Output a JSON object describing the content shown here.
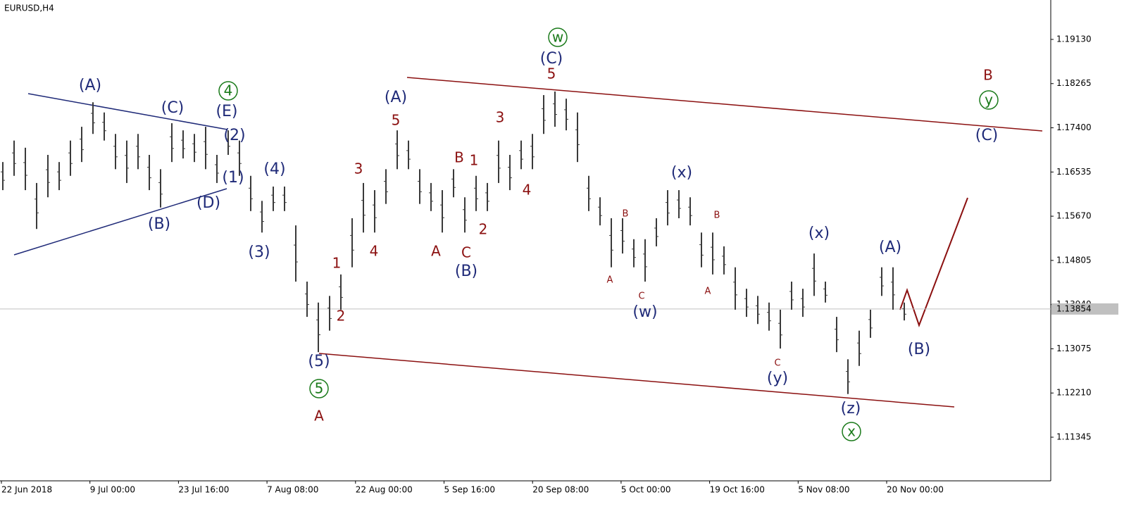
{
  "chart_data": {
    "type": "ohlc-bars",
    "title": "EURUSD,H4",
    "categories": [
      "22 Jun 2018",
      "9 Jul 00:00",
      "23 Jul 16:00",
      "7 Aug 08:00",
      "22 Aug 00:00",
      "5 Sep 16:00",
      "20 Sep 08:00",
      "5 Oct 00:00",
      "19 Oct 16:00",
      "5 Nov 08:00",
      "20 Nov 00:00"
    ],
    "series": [
      {
        "name": "EURUSD",
        "color": "#3a3a3a",
        "high": [
          1.1673,
          1.1715,
          1.1701,
          1.1632,
          1.1687,
          1.1673,
          1.1715,
          1.1742,
          1.179,
          1.177,
          1.1728,
          1.1715,
          1.1728,
          1.1687,
          1.1659,
          1.1749,
          1.1735,
          1.1728,
          1.1742,
          1.1687,
          1.1735,
          1.1715,
          1.1646,
          1.1597,
          1.1625,
          1.1625,
          1.1549,
          1.1439,
          1.1398,
          1.1411,
          1.1453,
          1.1563,
          1.1632,
          1.1618,
          1.1659,
          1.1735,
          1.1715,
          1.1659,
          1.1632,
          1.1618,
          1.1659,
          1.1604,
          1.1646,
          1.1632,
          1.1715,
          1.1687,
          1.1715,
          1.1728,
          1.1804,
          1.1811,
          1.1797,
          1.177,
          1.1646,
          1.1604,
          1.1563,
          1.1563,
          1.1522,
          1.1522,
          1.1563,
          1.1618,
          1.1618,
          1.1604,
          1.1535,
          1.1535,
          1.1508,
          1.1467,
          1.1425,
          1.1411,
          1.1398,
          1.1384,
          1.1439,
          1.1425,
          1.1494,
          1.1439,
          1.137,
          1.1287,
          1.1343,
          1.1384,
          1.1467,
          1.1467,
          1.1398
        ],
        "low": [
          1.1618,
          1.1646,
          1.1618,
          1.1542,
          1.1604,
          1.1618,
          1.1646,
          1.1673,
          1.1728,
          1.1715,
          1.1659,
          1.1632,
          1.1659,
          1.1618,
          1.1584,
          1.1673,
          1.168,
          1.1673,
          1.1659,
          1.1632,
          1.1687,
          1.1646,
          1.1577,
          1.1535,
          1.1577,
          1.1577,
          1.1439,
          1.137,
          1.1301,
          1.1343,
          1.1384,
          1.1467,
          1.1535,
          1.1535,
          1.1591,
          1.1659,
          1.1659,
          1.1591,
          1.1577,
          1.1535,
          1.1604,
          1.1535,
          1.1577,
          1.1577,
          1.1632,
          1.1618,
          1.1659,
          1.1659,
          1.1728,
          1.1742,
          1.1735,
          1.1673,
          1.1577,
          1.1549,
          1.1467,
          1.1494,
          1.1467,
          1.1439,
          1.1508,
          1.1549,
          1.1563,
          1.1549,
          1.1467,
          1.1453,
          1.1453,
          1.1384,
          1.137,
          1.1356,
          1.1343,
          1.1308,
          1.1384,
          1.137,
          1.1411,
          1.1398,
          1.1301,
          1.1219,
          1.1274,
          1.1329,
          1.1411,
          1.1384,
          1.1363
        ]
      }
    ],
    "current_price": {
      "value": 1.13854,
      "label": "1.13854"
    },
    "ylim": [
      1.10491,
      1.19901
    ],
    "yticks": [
      {
        "value": 1.1913,
        "label": "1.19130"
      },
      {
        "value": 1.18265,
        "label": "1.18265"
      },
      {
        "value": 1.174,
        "label": "1.17400"
      },
      {
        "value": 1.16535,
        "label": "1.16535"
      },
      {
        "value": 1.1567,
        "label": "1.15670"
      },
      {
        "value": 1.14805,
        "label": "1.14805"
      },
      {
        "value": 1.1394,
        "label": "1.13940"
      },
      {
        "value": 1.13075,
        "label": "1.13075"
      },
      {
        "value": 1.1221,
        "label": "1.12210"
      },
      {
        "value": 1.11345,
        "label": "1.11345"
      }
    ],
    "annotations": [
      {
        "text": "(A)",
        "color": "#1f2a78"
      },
      {
        "text": "(C)",
        "color": "#1f2a78"
      },
      {
        "text": "(E)",
        "color": "#1f2a78"
      },
      {
        "text": "(B)",
        "color": "#1f2a78"
      },
      {
        "text": "(D)",
        "color": "#1f2a78"
      },
      {
        "text": "(2)",
        "color": "#1f2a78"
      },
      {
        "text": "(1)",
        "color": "#1f2a78"
      },
      {
        "text": "(4)",
        "color": "#1f2a78"
      },
      {
        "text": "(3)",
        "color": "#1f2a78"
      },
      {
        "text": "(5)",
        "color": "#1f2a78"
      },
      {
        "text": "(A)",
        "color": "#1f2a78"
      },
      {
        "text": "(B)",
        "color": "#1f2a78"
      },
      {
        "text": "(C)",
        "color": "#1f2a78"
      },
      {
        "text": "(w)",
        "color": "#1f2a78"
      },
      {
        "text": "(x)",
        "color": "#1f2a78"
      },
      {
        "text": "(y)",
        "color": "#1f2a78"
      },
      {
        "text": "(x)",
        "color": "#1f2a78"
      },
      {
        "text": "(z)",
        "color": "#1f2a78"
      },
      {
        "text": "(A)",
        "color": "#1f2a78"
      },
      {
        "text": "(B)",
        "color": "#1f2a78"
      },
      {
        "text": "(C)",
        "color": "#1f2a78"
      },
      {
        "text": "4",
        "color": "#1a7a1a",
        "circled": true
      },
      {
        "text": "5",
        "color": "#1a7a1a",
        "circled": true
      },
      {
        "text": "w",
        "color": "#1a7a1a",
        "circled": true
      },
      {
        "text": "x",
        "color": "#1a7a1a",
        "circled": true
      },
      {
        "text": "y",
        "color": "#1a7a1a",
        "circled": true
      },
      {
        "text": "5",
        "color": "#8b1010"
      },
      {
        "text": "3",
        "color": "#8b1010"
      },
      {
        "text": "1",
        "color": "#8b1010"
      },
      {
        "text": "4",
        "color": "#8b1010"
      },
      {
        "text": "2",
        "color": "#8b1010"
      },
      {
        "text": "A",
        "color": "#8b1010"
      },
      {
        "text": "B",
        "color": "#8b1010"
      },
      {
        "text": "1",
        "color": "#8b1010"
      },
      {
        "text": "C",
        "color": "#8b1010"
      },
      {
        "text": "A",
        "color": "#8b1010"
      },
      {
        "text": "2",
        "color": "#8b1010"
      },
      {
        "text": "3",
        "color": "#8b1010"
      },
      {
        "text": "4",
        "color": "#8b1010"
      },
      {
        "text": "5",
        "color": "#8b1010"
      },
      {
        "text": "B",
        "color": "#8b1010"
      },
      {
        "text": "A",
        "color": "#8b1010"
      },
      {
        "text": "B",
        "color": "#8b1010"
      },
      {
        "text": "C",
        "color": "#8b1010"
      },
      {
        "text": "B",
        "color": "#8b1010"
      },
      {
        "text": "A",
        "color": "#8b1010"
      },
      {
        "text": "C",
        "color": "#8b1010"
      }
    ]
  }
}
